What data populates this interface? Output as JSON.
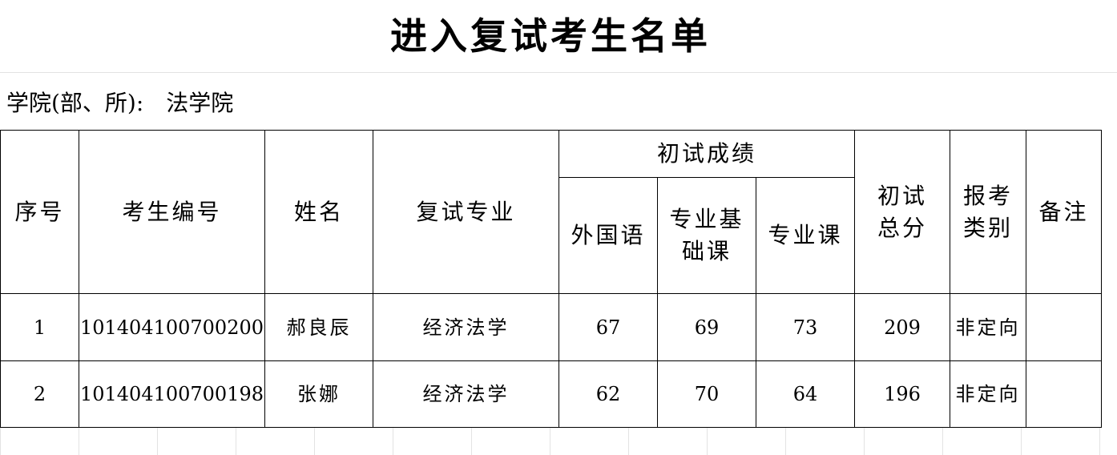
{
  "title": "进入复试考生名单",
  "college": {
    "label": "学院(部、所):",
    "value": "法学院"
  },
  "headers": {
    "seq": "序号",
    "exam_id": "考生编号",
    "name": "姓名",
    "major": "复试专业",
    "prelim_group": "初试成绩",
    "foreign_language": "外国语",
    "major_basic": "专业基础课",
    "major_course": "专业课",
    "total": "初试总分",
    "category": "报考类别",
    "remarks": "备注"
  },
  "rows": [
    {
      "seq": "1",
      "exam_id": "101404100700200",
      "name": "郝良辰",
      "major": "经济法学",
      "foreign_language": "67",
      "major_basic": "69",
      "major_course": "73",
      "total": "209",
      "category": "非定向",
      "remarks": ""
    },
    {
      "seq": "2",
      "exam_id": "101404100700198",
      "name": "张娜",
      "major": "经济法学",
      "foreign_language": "62",
      "major_basic": "70",
      "major_course": "64",
      "total": "196",
      "category": "非定向",
      "remarks": ""
    }
  ]
}
